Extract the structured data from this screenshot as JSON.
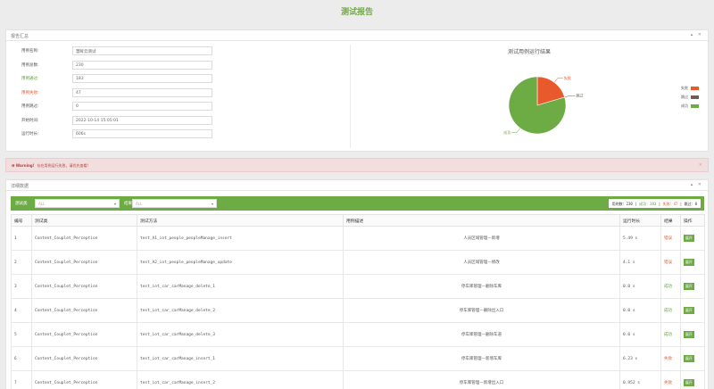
{
  "header": {
    "title": "测试报告"
  },
  "summary": {
    "panel_title": "报告汇总",
    "controls": "▴ ✕",
    "fields": [
      {
        "label": "用例名称:",
        "value": "慧眸云测试",
        "kind": ""
      },
      {
        "label": "用例总数:",
        "value": "230",
        "kind": ""
      },
      {
        "label": "用例通过:",
        "value": "183",
        "kind": "ok"
      },
      {
        "label": "用例失败:",
        "value": "47",
        "kind": "fail"
      },
      {
        "label": "用例跳过:",
        "value": "0",
        "kind": ""
      },
      {
        "label": "开始时间:",
        "value": "2022-10-14 15:05:01",
        "kind": ""
      },
      {
        "label": "运行时长:",
        "value": "606s",
        "kind": ""
      }
    ]
  },
  "pie": {
    "title": "测试用例运行结果",
    "legend": [
      {
        "label": "失败",
        "color": "#e85a2c"
      },
      {
        "label": "跳过",
        "color": "#6b5f55"
      },
      {
        "label": "成功",
        "color": "#6dac45"
      }
    ],
    "slices": [
      {
        "label": "失败",
        "value": 47,
        "color": "#e85a2c"
      },
      {
        "label": "跳过",
        "value": 0,
        "color": "#6b5f55"
      },
      {
        "label": "成功",
        "value": 183,
        "color": "#6dac45"
      }
    ]
  },
  "warning": {
    "strong": "❶ Warning!",
    "text": "存在用例运行失败，请优先查看!",
    "close": "×"
  },
  "detail": {
    "panel_title": "详细数据",
    "controls": "▴ ✕",
    "filter_class_label": "测试类",
    "filter_class_value": "ALL",
    "filter_result_label": "结果",
    "filter_result_value": "ALL",
    "stats": {
      "total_label": "用例数：",
      "total": "230",
      "pass_label": "成功：",
      "pass": "183",
      "fail_label": "失败：",
      "fail": "47",
      "skip_label": "跳过：",
      "skip": "0"
    },
    "columns": [
      "编号",
      "测试类",
      "测试方法",
      "用例描述",
      "运行时长",
      "结果",
      "操作"
    ],
    "op_label": "展开",
    "rows": [
      {
        "id": "1",
        "cls": "Content_Couplet_Perception",
        "method": "test_A1_iot_people_peopleManage_insert",
        "desc": "人员区域管理—新增",
        "time": "5.49 s",
        "result": "错误",
        "kind": "fail"
      },
      {
        "id": "2",
        "cls": "Content_Couplet_Perception",
        "method": "test_A2_iot_people_peopleManage_update",
        "desc": "人员区域管理—修改",
        "time": "4.1 s",
        "result": "错误",
        "kind": "fail"
      },
      {
        "id": "3",
        "cls": "Content_Couplet_Perception",
        "method": "test_iot_car_carManage_delete_1",
        "desc": "停车库管理—删除车库",
        "time": "0.0 s",
        "result": "成功",
        "kind": "ok"
      },
      {
        "id": "4",
        "cls": "Content_Couplet_Perception",
        "method": "test_iot_car_carManage_delete_2",
        "desc": "停车库管理—删除出入口",
        "time": "0.0 s",
        "result": "成功",
        "kind": "ok"
      },
      {
        "id": "5",
        "cls": "Content_Couplet_Perception",
        "method": "test_iot_car_carManage_delete_3",
        "desc": "停车库管理—删除车道",
        "time": "0.0 s",
        "result": "成功",
        "kind": "ok"
      },
      {
        "id": "6",
        "cls": "Content_Couplet_Perception",
        "method": "test_iot_car_carManage_insert_1",
        "desc": "停车库管理—新增车库",
        "time": "6.23 s",
        "result": "失败",
        "kind": "fail"
      },
      {
        "id": "7",
        "cls": "Content_Couplet_Perception",
        "method": "test_iot_car_carManage_insert_2",
        "desc": "停车库管理—新增出入口",
        "time": "0.952 s",
        "result": "失败",
        "kind": "fail"
      }
    ]
  }
}
